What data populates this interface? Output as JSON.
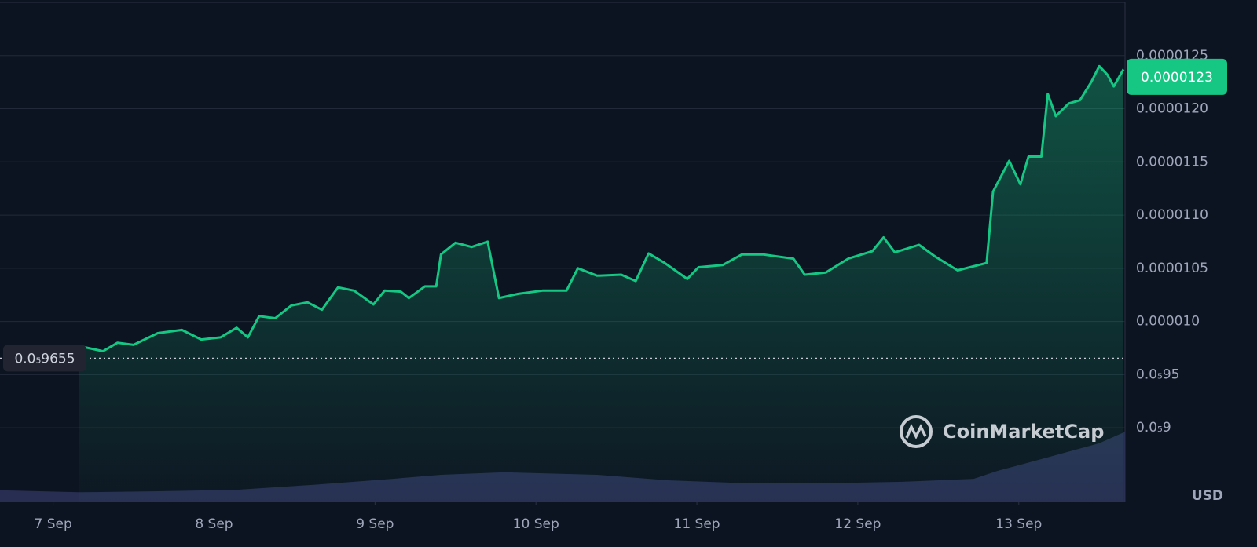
{
  "chart_data": {
    "type": "line",
    "x": [
      7.16,
      7.31,
      7.4,
      7.5,
      7.65,
      7.8,
      7.92,
      8.04,
      8.14,
      8.21,
      8.28,
      8.38,
      8.48,
      8.58,
      8.67,
      8.77,
      8.87,
      8.99,
      9.06,
      9.16,
      9.21,
      9.31,
      9.38,
      9.41,
      9.5,
      9.6,
      9.7,
      9.77,
      9.89,
      10.04,
      10.19,
      10.26,
      10.38,
      10.53,
      10.62,
      10.7,
      10.8,
      10.94,
      11.01,
      11.16,
      11.28,
      11.41,
      11.6,
      11.67,
      11.8,
      11.94,
      12.09,
      12.16,
      12.23,
      12.38,
      12.48,
      12.62,
      12.8,
      12.84,
      12.94,
      13.01,
      13.06,
      13.14,
      13.18,
      13.23,
      13.31,
      13.38,
      13.45,
      13.5,
      13.55,
      13.59,
      13.65
    ],
    "series": [
      {
        "color": "#16c784",
        "values": [
          9.77e-06,
          9.72e-06,
          9.8e-06,
          9.78e-06,
          9.89e-06,
          9.92e-06,
          9.83e-06,
          9.85e-06,
          9.94e-06,
          9.85e-06,
          1.005e-05,
          1.003e-05,
          1.015e-05,
          1.018e-05,
          1.011e-05,
          1.032e-05,
          1.029e-05,
          1.016e-05,
          1.029e-05,
          1.028e-05,
          1.022e-05,
          1.033e-05,
          1.033e-05,
          1.063e-05,
          1.074e-05,
          1.07e-05,
          1.075e-05,
          1.022e-05,
          1.026e-05,
          1.029e-05,
          1.029e-05,
          1.05e-05,
          1.043e-05,
          1.044e-05,
          1.038e-05,
          1.064e-05,
          1.055e-05,
          1.04e-05,
          1.051e-05,
          1.053e-05,
          1.063e-05,
          1.063e-05,
          1.059e-05,
          1.044e-05,
          1.046e-05,
          1.059e-05,
          1.066e-05,
          1.079e-05,
          1.065e-05,
          1.072e-05,
          1.061e-05,
          1.048e-05,
          1.055e-05,
          1.122e-05,
          1.151e-05,
          1.129e-05,
          1.155e-05,
          1.155e-05,
          1.214e-05,
          1.193e-05,
          1.205e-05,
          1.208e-05,
          1.225e-05,
          1.24e-05,
          1.232e-05,
          1.221e-05,
          1.237e-05
        ]
      },
      {
        "axis": "y2",
        "color": "#2b3158",
        "x": [
          6.67,
          7.16,
          7.65,
          8.14,
          8.62,
          9.11,
          9.41,
          9.8,
          10.38,
          10.82,
          11.31,
          11.8,
          12.28,
          12.72,
          12.87,
          13.01,
          13.26,
          13.5,
          13.66
        ],
        "values": [
          2.4,
          2.0,
          2.2,
          2.5,
          3.5,
          4.7,
          5.5,
          6.0,
          5.5,
          4.4,
          3.8,
          3.8,
          4.1,
          4.7,
          6.3,
          7.5,
          9.7,
          11.8,
          14.1
        ]
      }
    ],
    "xlim": [
      6.67,
      13.66
    ],
    "xticks": [
      {
        "value": 7,
        "label": "7 Sep"
      },
      {
        "value": 8,
        "label": "8 Sep"
      },
      {
        "value": 9,
        "label": "9 Sep"
      },
      {
        "value": 10,
        "label": "10 Sep"
      },
      {
        "value": 11,
        "label": "11 Sep"
      },
      {
        "value": 12,
        "label": "12 Sep"
      },
      {
        "value": 13,
        "label": "13 Sep"
      }
    ],
    "ylim": [
      8.3e-06,
      1.3e-05
    ],
    "yticks": [
      {
        "value": 1.25e-05,
        "label": "0.0000125"
      },
      {
        "value": 1.2e-05,
        "label": "0.0000120"
      },
      {
        "value": 1.15e-05,
        "label": "0.0000115"
      },
      {
        "value": 1.1e-05,
        "label": "0.0000110"
      },
      {
        "value": 1.05e-05,
        "label": "0.0000105"
      },
      {
        "value": 1e-05,
        "label": "0.000010"
      },
      {
        "value": 9.5e-06,
        "label": "0.0₅95"
      },
      {
        "value": 9e-06,
        "label": "0.0₅9"
      }
    ],
    "y2lim": [
      0,
      100
    ],
    "grid": true,
    "current_price": {
      "value": 1.23e-05,
      "label": "0.0000123"
    },
    "reference_price": {
      "value": 9.655e-06,
      "label": "0.0₅9655"
    },
    "currency": "USD",
    "watermark": "CoinMarketCap"
  }
}
